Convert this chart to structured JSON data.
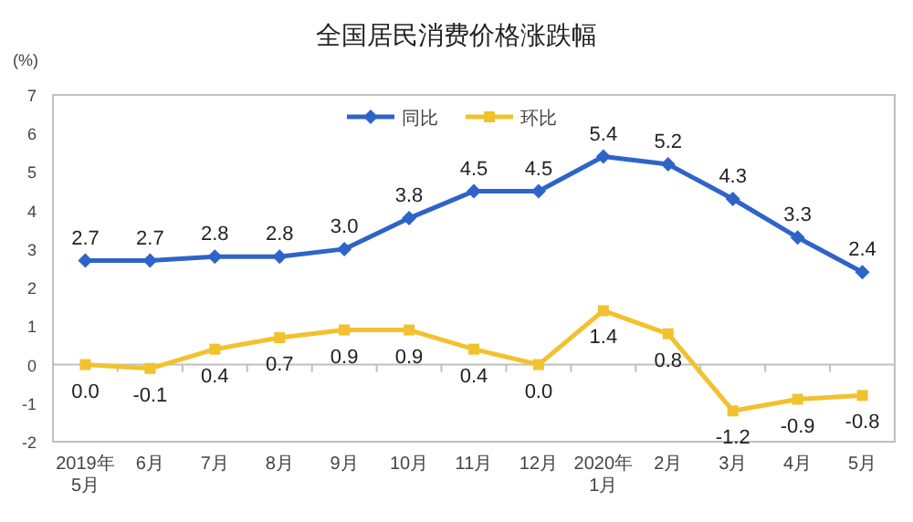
{
  "chart_data": {
    "type": "line",
    "title": "全国居民消费价格涨跌幅",
    "ylabel": "(%)",
    "categories": [
      "2019年\n5月",
      "6月",
      "7月",
      "8月",
      "9月",
      "10月",
      "11月",
      "12月",
      "2020年\n1月",
      "2月",
      "3月",
      "4月",
      "5月"
    ],
    "series": [
      {
        "name": "同比",
        "color": "#2e64c8",
        "marker": "diamond",
        "values": [
          2.7,
          2.7,
          2.8,
          2.8,
          3.0,
          3.8,
          4.5,
          4.5,
          5.4,
          5.2,
          4.3,
          3.3,
          2.4
        ],
        "value_labels": [
          "2.7",
          "2.7",
          "2.8",
          "2.8",
          "3.0",
          "3.8",
          "4.5",
          "4.5",
          "5.4",
          "5.2",
          "4.3",
          "3.3",
          "2.4"
        ]
      },
      {
        "name": "环比",
        "color": "#f2c12e",
        "marker": "square",
        "values": [
          0.0,
          -0.1,
          0.4,
          0.7,
          0.9,
          0.9,
          0.4,
          0.0,
          1.4,
          0.8,
          -1.2,
          -0.9,
          -0.8
        ],
        "value_labels": [
          "0.0",
          "-0.1",
          "0.4",
          "0.7",
          "0.9",
          "0.9",
          "0.4",
          "0.0",
          "1.4",
          "0.8",
          "-1.2",
          "-0.9",
          "-0.8"
        ]
      }
    ],
    "ylim": [
      -2,
      7
    ],
    "yticks": [
      -2,
      -1,
      0,
      1,
      2,
      3,
      4,
      5,
      6,
      7
    ],
    "ref_lines": [
      {
        "axis": "y",
        "value": 0,
        "color": "#bfbfbf"
      }
    ],
    "grid": false,
    "legend": "top",
    "line_style": "solid"
  }
}
